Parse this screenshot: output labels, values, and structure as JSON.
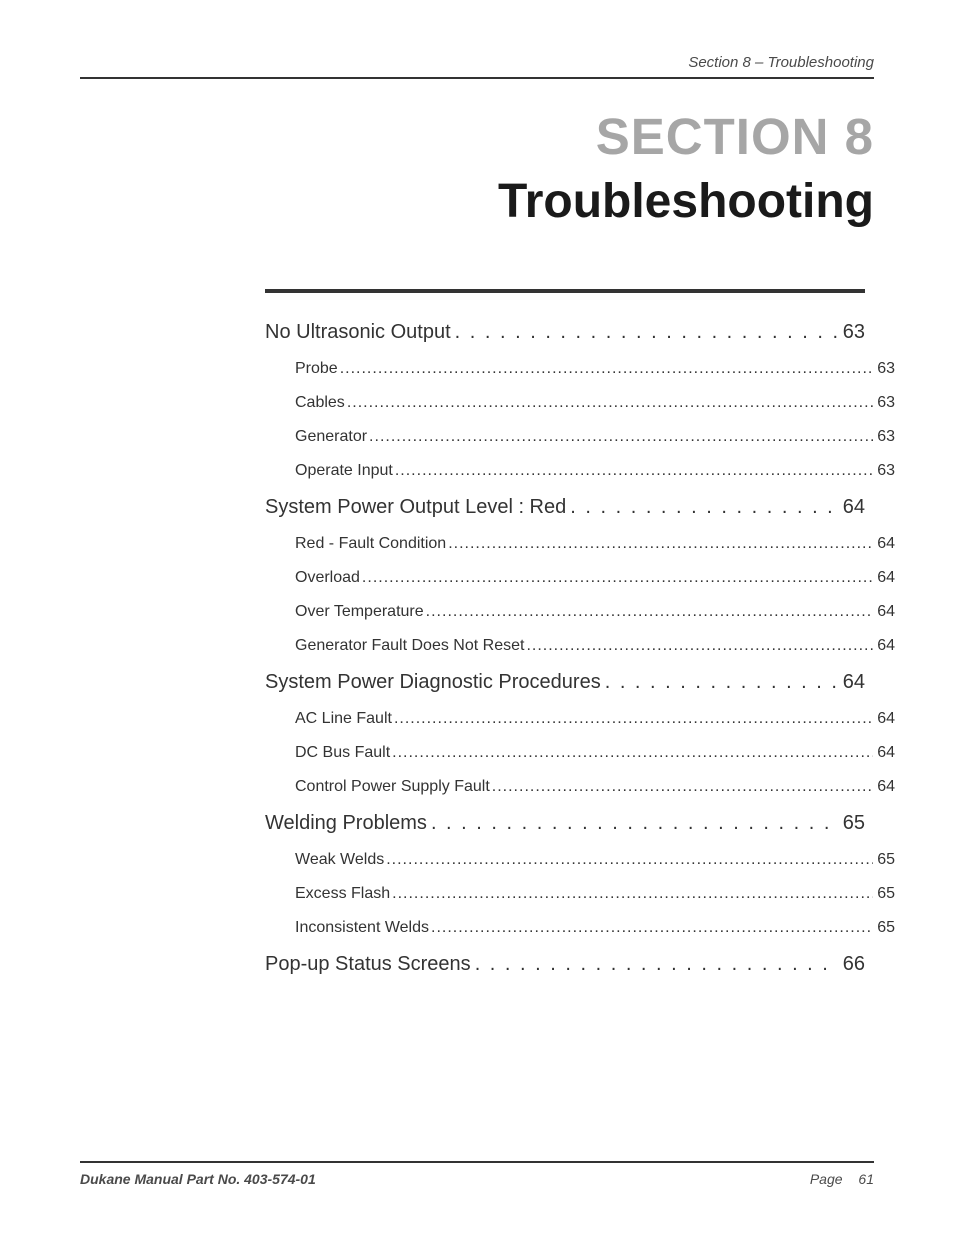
{
  "colors": {
    "text": "#333333",
    "muted": "#4a4a4a",
    "rule": "#333333",
    "section_number": "#a6a6a6",
    "section_title": "#1a1a1a",
    "background": "#ffffff"
  },
  "typography": {
    "section_number_fontsize": 51,
    "section_title_fontsize": 48,
    "toc_l1_fontsize": 20,
    "toc_l2_fontsize": 16,
    "header_fontsize": 15,
    "footer_fontsize": 14
  },
  "header": {
    "running_head": "Section 8 – Troubleshooting"
  },
  "title_block": {
    "section_number": "SECTION 8",
    "section_title": "Troubleshooting"
  },
  "toc": [
    {
      "level": 1,
      "label": "No Ultrasonic Output",
      "page": "63"
    },
    {
      "level": 2,
      "label": "Probe",
      "page": "63"
    },
    {
      "level": 2,
      "label": "Cables",
      "page": "63"
    },
    {
      "level": 2,
      "label": "Generator",
      "page": "63"
    },
    {
      "level": 2,
      "label": "Operate Input",
      "page": "63"
    },
    {
      "level": 1,
      "label": "System Power Output Level : Red",
      "page": "64"
    },
    {
      "level": 2,
      "label": "Red - Fault Condition",
      "page": "64"
    },
    {
      "level": 2,
      "label": "Overload",
      "page": "64"
    },
    {
      "level": 2,
      "label": "Over Temperature",
      "page": "64"
    },
    {
      "level": 2,
      "label": "Generator Fault Does Not Reset",
      "page": "64"
    },
    {
      "level": 1,
      "label": "System Power Diagnostic Procedures",
      "page": "64"
    },
    {
      "level": 2,
      "label": "AC Line Fault",
      "page": "64"
    },
    {
      "level": 2,
      "label": "DC Bus Fault",
      "page": "64"
    },
    {
      "level": 2,
      "label": "Control Power Supply Fault",
      "page": "64"
    },
    {
      "level": 1,
      "label": "Welding Problems",
      "page": "65"
    },
    {
      "level": 2,
      "label": "Weak Welds",
      "page": "65"
    },
    {
      "level": 2,
      "label": "Excess Flash",
      "page": "65"
    },
    {
      "level": 2,
      "label": "Inconsistent Welds",
      "page": "65"
    },
    {
      "level": 1,
      "label": "Pop-up Status Screens",
      "page": "66"
    }
  ],
  "footer": {
    "left": "Dukane Manual Part No. 403-574-01",
    "page_label": "Page",
    "page_number": "61"
  }
}
